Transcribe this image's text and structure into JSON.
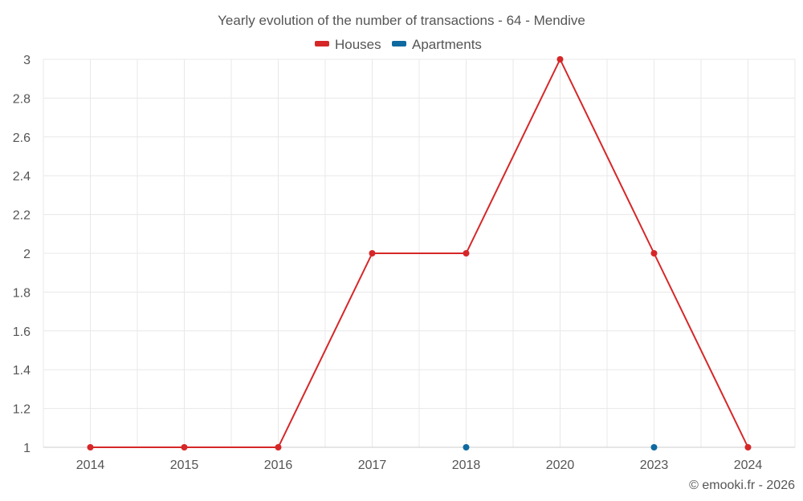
{
  "chart_data": {
    "type": "line",
    "title": "Yearly evolution of the number of transactions - 64 - Mendive",
    "categories": [
      "2014",
      "2015",
      "2016",
      "2017",
      "2018",
      "2020",
      "2023",
      "2024"
    ],
    "ylim": [
      1,
      3
    ],
    "yticks": [
      "1",
      "1.2",
      "1.4",
      "1.6",
      "1.8",
      "2",
      "2.2",
      "2.4",
      "2.6",
      "2.8",
      "3"
    ],
    "ytick_values": [
      1,
      1.2,
      1.4,
      1.6,
      1.8,
      2,
      2.2,
      2.4,
      2.6,
      2.8,
      3
    ],
    "xlabel": "",
    "ylabel": "",
    "legend_position": "top-center",
    "series": [
      {
        "name": "Houses",
        "color": "#d62728",
        "values": [
          1,
          1,
          1,
          2,
          2,
          3,
          2,
          1
        ]
      },
      {
        "name": "Apartments",
        "color": "#0e6aa0",
        "values": [
          null,
          null,
          null,
          null,
          1,
          null,
          1,
          null
        ]
      }
    ]
  },
  "credit": "© emooki.fr - 2026"
}
